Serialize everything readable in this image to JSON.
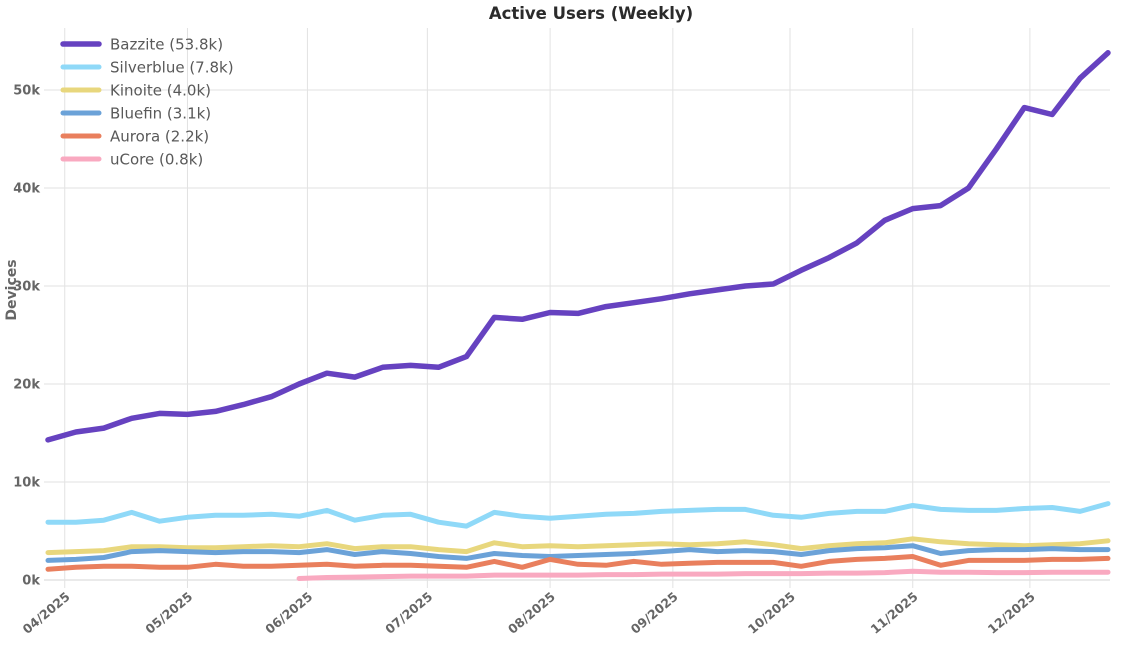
{
  "chart_data": {
    "type": "line",
    "title": "Active Users (Weekly)",
    "ylabel": "Devices",
    "xlabel": "",
    "x_unit": "week-index (weekly samples, Apr 2025 through mid-Dec 2025)",
    "n_points": 39,
    "ylim": [
      0,
      56
    ],
    "grid": true,
    "legend_position": "top-left",
    "y_ticks": [
      {
        "label": "0k",
        "value": 0
      },
      {
        "label": "10k",
        "value": 10
      },
      {
        "label": "20k",
        "value": 20
      },
      {
        "label": "30k",
        "value": 30
      },
      {
        "label": "40k",
        "value": 40
      },
      {
        "label": "50k",
        "value": 50
      }
    ],
    "x_ticks": [
      {
        "label": "04/2025",
        "pos": 0.6
      },
      {
        "label": "05/2025",
        "pos": 5.0
      },
      {
        "label": "06/2025",
        "pos": 9.3
      },
      {
        "label": "07/2025",
        "pos": 13.6
      },
      {
        "label": "08/2025",
        "pos": 18.0
      },
      {
        "label": "09/2025",
        "pos": 22.4
      },
      {
        "label": "10/2025",
        "pos": 26.6
      },
      {
        "label": "11/2025",
        "pos": 31.0
      },
      {
        "label": "12/2025",
        "pos": 35.2
      }
    ],
    "series": [
      {
        "name": "Bazzite",
        "legend_label": "Bazzite (53.8k)",
        "final_value_k": 53.8,
        "color": "#6642c0",
        "values": [
          14.3,
          15.1,
          15.5,
          16.5,
          17.0,
          16.9,
          17.2,
          17.9,
          18.7,
          20.0,
          21.1,
          20.7,
          21.7,
          21.9,
          21.7,
          22.8,
          26.8,
          26.6,
          27.3,
          27.2,
          27.9,
          28.3,
          28.7,
          29.2,
          29.6,
          30.0,
          30.2,
          31.6,
          32.9,
          34.4,
          36.7,
          37.9,
          38.2,
          40.0,
          44.0,
          48.2,
          47.5,
          51.2,
          53.8
        ]
      },
      {
        "name": "Silverblue",
        "legend_label": "Silverblue (7.8k)",
        "final_value_k": 7.8,
        "color": "#8fd9f8",
        "values": [
          5.9,
          5.9,
          6.1,
          6.9,
          6.0,
          6.4,
          6.6,
          6.6,
          6.7,
          6.5,
          7.1,
          6.1,
          6.6,
          6.7,
          5.9,
          5.5,
          6.9,
          6.5,
          6.3,
          6.5,
          6.7,
          6.8,
          7.0,
          7.1,
          7.2,
          7.2,
          6.6,
          6.4,
          6.8,
          7.0,
          7.0,
          7.6,
          7.2,
          7.1,
          7.1,
          7.3,
          7.4,
          7.0,
          7.8
        ]
      },
      {
        "name": "Kinoite",
        "legend_label": "Kinoite (4.0k)",
        "final_value_k": 4.0,
        "color": "#e8d77d",
        "values": [
          2.8,
          2.9,
          3.0,
          3.4,
          3.4,
          3.3,
          3.3,
          3.4,
          3.5,
          3.4,
          3.7,
          3.2,
          3.4,
          3.4,
          3.1,
          2.9,
          3.8,
          3.4,
          3.5,
          3.4,
          3.5,
          3.6,
          3.7,
          3.6,
          3.7,
          3.9,
          3.6,
          3.2,
          3.5,
          3.7,
          3.8,
          4.2,
          3.9,
          3.7,
          3.6,
          3.5,
          3.6,
          3.7,
          4.0
        ]
      },
      {
        "name": "Bluefin",
        "legend_label": "Bluefin (3.1k)",
        "final_value_k": 3.1,
        "color": "#6ba2d8",
        "values": [
          2.0,
          2.1,
          2.3,
          2.9,
          3.0,
          2.9,
          2.8,
          2.9,
          2.9,
          2.8,
          3.1,
          2.6,
          2.9,
          2.7,
          2.4,
          2.2,
          2.7,
          2.5,
          2.4,
          2.5,
          2.6,
          2.7,
          2.9,
          3.1,
          2.9,
          3.0,
          2.9,
          2.6,
          3.0,
          3.2,
          3.3,
          3.5,
          2.7,
          3.0,
          3.1,
          3.1,
          3.2,
          3.1,
          3.1
        ]
      },
      {
        "name": "Aurora",
        "legend_label": "Aurora (2.2k)",
        "final_value_k": 2.2,
        "color": "#e97f5d",
        "values": [
          1.1,
          1.3,
          1.4,
          1.4,
          1.3,
          1.3,
          1.6,
          1.4,
          1.4,
          1.5,
          1.6,
          1.4,
          1.5,
          1.5,
          1.4,
          1.3,
          1.9,
          1.3,
          2.1,
          1.6,
          1.5,
          1.9,
          1.6,
          1.7,
          1.8,
          1.8,
          1.8,
          1.4,
          1.9,
          2.1,
          2.2,
          2.4,
          1.5,
          2.0,
          2.0,
          2.0,
          2.1,
          2.1,
          2.2
        ]
      },
      {
        "name": "uCore",
        "legend_label": "uCore (0.8k)",
        "final_value_k": 0.8,
        "color": "#f9a9c0",
        "values": [
          null,
          null,
          null,
          null,
          null,
          null,
          null,
          null,
          null,
          0.15,
          0.25,
          0.3,
          0.35,
          0.4,
          0.4,
          0.4,
          0.5,
          0.5,
          0.5,
          0.5,
          0.55,
          0.55,
          0.6,
          0.6,
          0.6,
          0.65,
          0.65,
          0.65,
          0.7,
          0.7,
          0.75,
          0.9,
          0.8,
          0.8,
          0.75,
          0.75,
          0.8,
          0.8,
          0.8
        ]
      }
    ]
  },
  "colors": {
    "background": "#ffffff",
    "grid_line": "#e2e2e2",
    "baseline": "#d4d4d4",
    "axis_text": "#666666",
    "legend_text": "#595959",
    "title_text": "#2b2b2b"
  }
}
